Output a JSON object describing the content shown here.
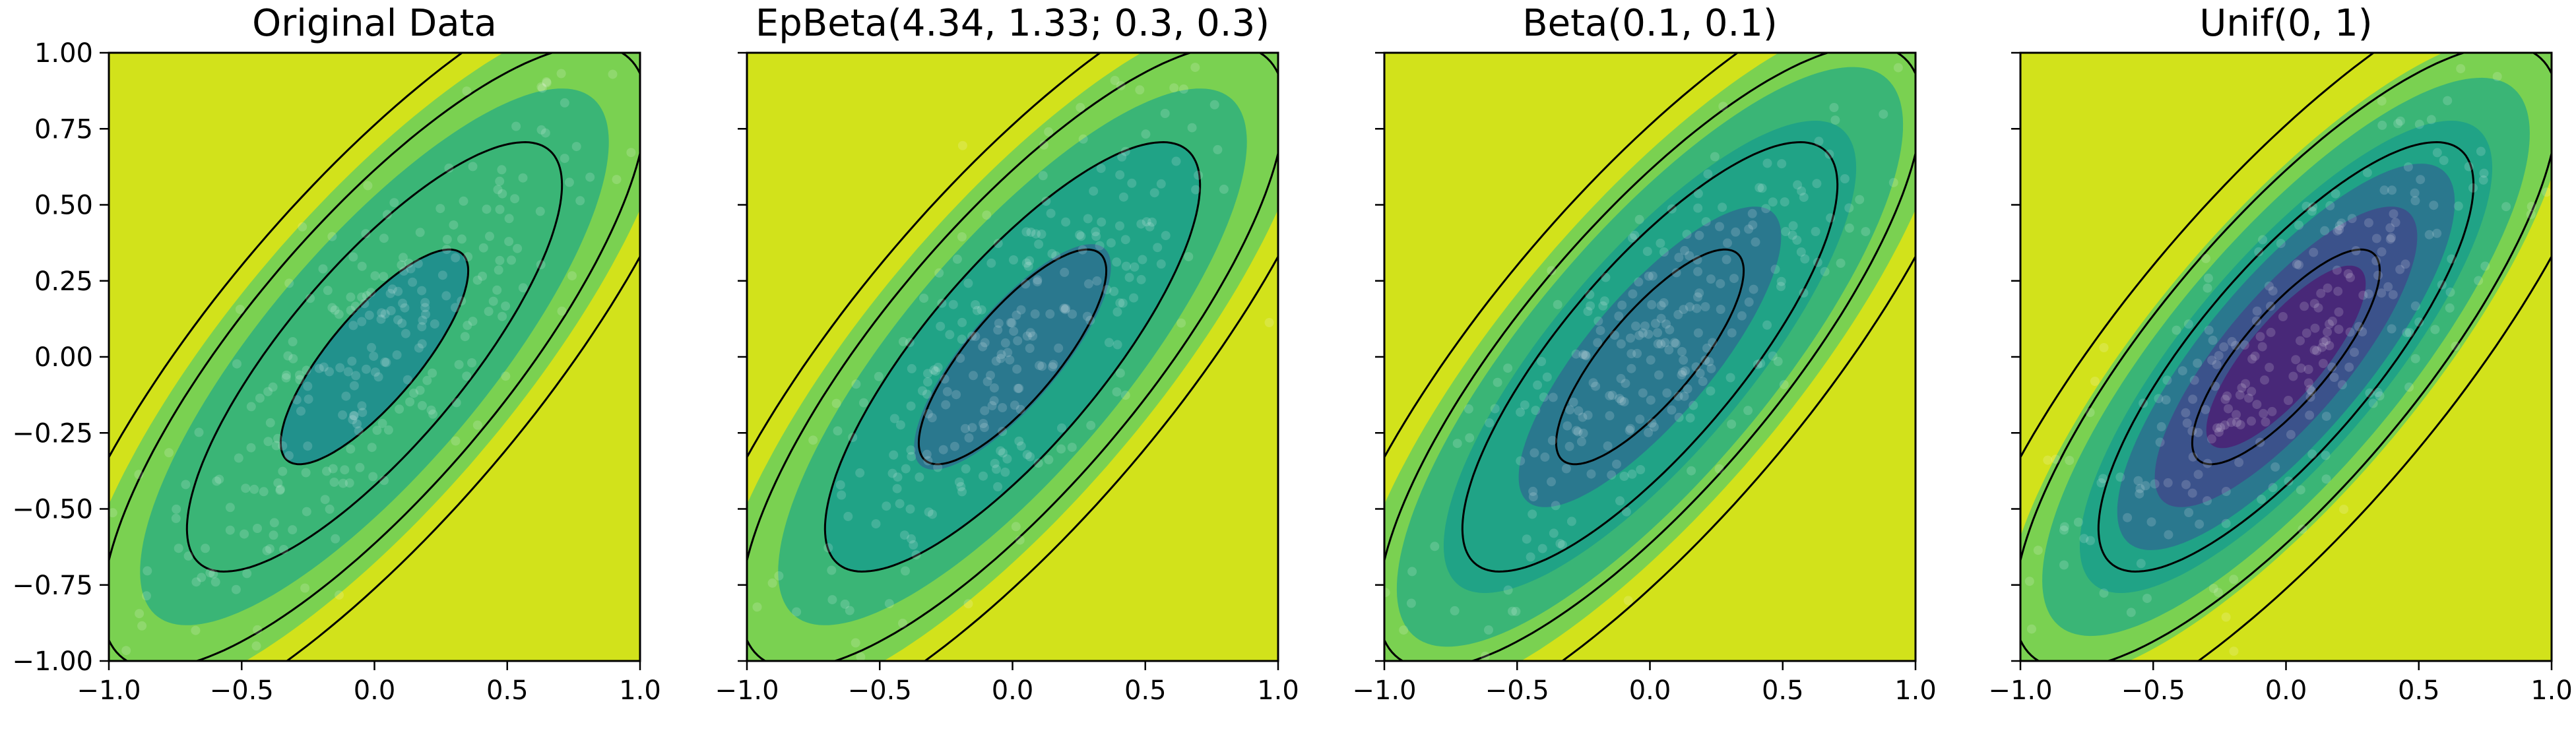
{
  "chart_data": [
    {
      "type": "contour",
      "title": "Original Data",
      "xlim": [
        -1.0,
        1.0
      ],
      "ylim": [
        -1.0,
        1.0
      ],
      "xticks": [
        "−1.0",
        "−0.5",
        "0.0",
        "0.5",
        "1.0"
      ],
      "yticks": [
        "1.00",
        "0.75",
        "0.50",
        "0.25",
        "0.00",
        "−0.25",
        "−0.50",
        "−0.75",
        "−1.00"
      ],
      "show_ytick_labels": true,
      "filled_levels_sigma": [
        3.2,
        2.5,
        1.0
      ],
      "filled_colors": [
        "#d2e21b",
        "#7ad151",
        "#3ab576",
        "#21918c"
      ],
      "contour_lines_sigma": [
        1.0,
        2.0,
        2.9,
        3.6
      ],
      "correlation": 0.8
    },
    {
      "type": "contour",
      "title": "EpBeta(4.34, 1.33; 0.3, 0.3)",
      "xlim": [
        -1.0,
        1.0
      ],
      "ylim": [
        -1.0,
        1.0
      ],
      "xticks": [
        "−1.0",
        "−0.5",
        "0.0",
        "0.5",
        "1.0"
      ],
      "yticks": [
        "1.00",
        "0.75",
        "0.50",
        "0.25",
        "0.00",
        "−0.25",
        "−0.50",
        "−0.75",
        "−1.00"
      ],
      "show_ytick_labels": false,
      "filled_levels_sigma": [
        3.2,
        2.5,
        2.0,
        1.05
      ],
      "filled_colors": [
        "#d2e21b",
        "#7ad151",
        "#3ab576",
        "#20a386",
        "#2a788e"
      ],
      "contour_lines_sigma": [
        1.0,
        2.0,
        2.9,
        3.6
      ],
      "correlation": 0.8
    },
    {
      "type": "contour",
      "title": "Beta(0.1, 0.1)",
      "xlim": [
        -1.0,
        1.0
      ],
      "ylim": [
        -1.0,
        1.0
      ],
      "xticks": [
        "−1.0",
        "−0.5",
        "0.0",
        "0.5",
        "1.0"
      ],
      "yticks": [
        "1.00",
        "0.75",
        "0.50",
        "0.25",
        "0.00",
        "−0.25",
        "−0.50",
        "−0.75",
        "−1.00"
      ],
      "show_ytick_labels": false,
      "filled_levels_sigma": [
        3.2,
        2.7,
        2.2,
        1.4
      ],
      "filled_colors": [
        "#d2e21b",
        "#7ad151",
        "#3ab576",
        "#20a386",
        "#2a788e"
      ],
      "contour_lines_sigma": [
        1.0,
        2.0,
        2.9,
        3.6
      ],
      "correlation": 0.8
    },
    {
      "type": "contour",
      "title": "Unif(0, 1)",
      "xlim": [
        -1.0,
        1.0
      ],
      "ylim": [
        -1.0,
        1.0
      ],
      "xticks": [
        "−1.0",
        "−0.5",
        "0.0",
        "0.5",
        "1.0"
      ],
      "yticks": [
        "1.00",
        "0.75",
        "0.50",
        "0.25",
        "0.00",
        "−0.25",
        "−0.50",
        "−0.75",
        "−1.00"
      ],
      "show_ytick_labels": false,
      "filled_levels_sigma": [
        3.0,
        2.6,
        2.2,
        1.8,
        1.4,
        0.85
      ],
      "filled_colors": [
        "#d2e21b",
        "#7ad151",
        "#3ab576",
        "#20a386",
        "#2a788e",
        "#3b528b",
        "#482878"
      ],
      "contour_lines_sigma": [
        1.0,
        2.0,
        2.9,
        3.6
      ],
      "correlation": 0.8
    }
  ]
}
